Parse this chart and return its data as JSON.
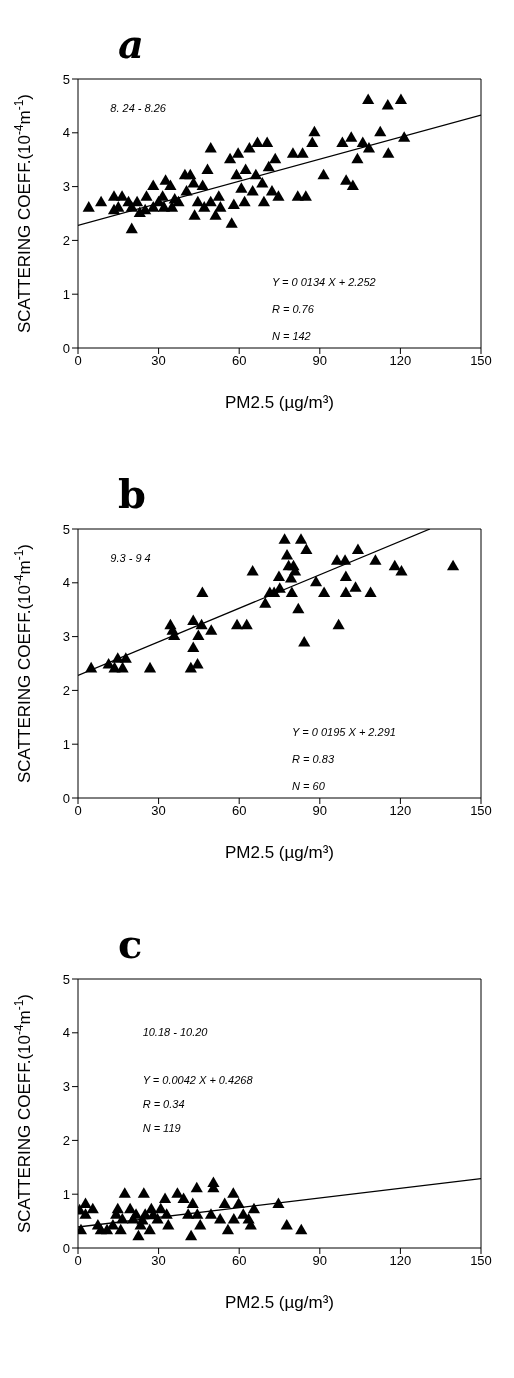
{
  "chart_data": [
    {
      "type": "scatter",
      "title": "a",
      "xlabel": "PM2.5 (µg/m³)",
      "ylabel": "SCATTERING COEFF.(10$^{-4}$m$^{-1}$)",
      "xlim": [
        0,
        150
      ],
      "xticks": [
        0,
        30,
        60,
        90,
        120,
        150
      ],
      "ylim": [
        0,
        5
      ],
      "yticks": [
        0,
        1,
        2,
        3,
        4,
        5
      ],
      "grid": false,
      "legend": false,
      "annotations": [
        "8. 24 - 8.26",
        "Y = 0 0134 X + 2.252",
        "R = 0.76",
        "N = 142"
      ],
      "series": [
        {
          "color": "#000000",
          "marker": "triangle",
          "x": [
            4,
            8.6,
            13.4,
            16.4,
            13.4,
            18.8,
            20,
            22,
            23,
            25.5,
            28,
            30,
            31.5,
            32.6,
            34.4,
            35,
            37.4,
            39.8,
            40.4,
            41.8,
            43,
            43.4,
            44.6,
            46.4,
            48.2,
            49.4,
            49.4,
            51.2,
            52.4,
            53,
            56.6,
            57.2,
            58,
            59,
            59.6,
            60.8,
            62,
            62.4,
            63.8,
            65,
            66.2,
            66.8,
            70.4,
            69.2,
            68.6,
            71,
            73.4,
            74.6,
            72.2,
            80,
            83.6,
            81.8,
            84.8,
            87.2,
            88,
            91.4,
            98.4,
            99.8,
            101.7,
            102.3,
            104,
            106,
            108.3,
            108,
            112.5,
            115.3,
            115.5,
            120.2,
            121.4,
            20,
            25,
            28,
            32,
            36,
            15,
            47
          ],
          "values": [
            2.6,
            2.7,
            2.8,
            2.8,
            2.55,
            2.7,
            2.2,
            2.7,
            2.5,
            2.8,
            3.0,
            2.7,
            2.8,
            3.1,
            3.0,
            2.6,
            2.7,
            3.2,
            2.9,
            3.2,
            3.05,
            2.45,
            2.7,
            3.0,
            3.3,
            3.7,
            2.7,
            2.45,
            2.8,
            2.6,
            3.5,
            2.3,
            2.65,
            3.2,
            3.6,
            2.95,
            2.7,
            3.3,
            3.7,
            2.9,
            3.2,
            3.8,
            3.8,
            2.7,
            3.05,
            3.35,
            3.5,
            2.8,
            2.9,
            3.6,
            3.6,
            2.8,
            2.8,
            3.8,
            4.0,
            3.2,
            3.8,
            3.1,
            3.9,
            3.0,
            3.5,
            3.8,
            3.7,
            4.6,
            4.0,
            4.5,
            3.6,
            4.6,
            3.9,
            2.6,
            2.55,
            2.6,
            2.6,
            2.75,
            2.6,
            2.6
          ]
        },
        {
          "type": "line",
          "color": "#000000",
          "marker": "none",
          "x": [
            0,
            150
          ],
          "values": [
            2.28,
            4.33
          ]
        }
      ]
    },
    {
      "type": "scatter",
      "title": "b",
      "xlabel": "PM2.5 (µg/m³)",
      "ylabel": "SCATTERING COEFF.(10$^{-4}$m$^{-1}$)",
      "xlim": [
        0,
        150
      ],
      "xticks": [
        0,
        30,
        60,
        90,
        120,
        150
      ],
      "ylim": [
        0,
        5
      ],
      "yticks": [
        0,
        1,
        2,
        3,
        4,
        5
      ],
      "grid": false,
      "legend": false,
      "annotations": [
        "9.3 - 9 4",
        "Y = 0 0195 X + 2.291",
        "R = 0.83",
        "N = 60"
      ],
      "series": [
        {
          "color": "#000000",
          "marker": "triangle",
          "x": [
            4.9,
            11.4,
            14.8,
            13.6,
            16.6,
            17.8,
            26.8,
            34.4,
            35.2,
            35.8,
            42.9,
            42.9,
            42,
            44.5,
            44.8,
            46,
            46.3,
            49.6,
            59.2,
            62.8,
            65,
            69.7,
            71.4,
            73,
            74.8,
            75.1,
            76.9,
            77.8,
            78.4,
            79.3,
            79.6,
            80.2,
            80.8,
            82,
            83,
            84.2,
            85,
            88.6,
            91.6,
            96.4,
            97,
            99.4,
            99.7,
            99.7,
            103.3,
            104.2,
            108.9,
            110.7,
            117.9,
            120.4,
            139.6
          ],
          "values": [
            2.4,
            2.47,
            2.58,
            2.4,
            2.4,
            2.58,
            2.4,
            3.2,
            3.1,
            3.0,
            3.28,
            2.78,
            2.4,
            2.47,
            3.0,
            3.2,
            3.8,
            3.1,
            3.2,
            3.2,
            4.2,
            3.6,
            3.8,
            3.8,
            4.1,
            3.88,
            4.79,
            4.5,
            4.3,
            4.07,
            3.8,
            4.3,
            4.2,
            3.5,
            4.79,
            2.88,
            4.6,
            4.0,
            3.8,
            4.4,
            3.2,
            4.4,
            4.1,
            3.8,
            3.9,
            4.6,
            3.8,
            4.4,
            4.3,
            4.2,
            4.3
          ]
        },
        {
          "type": "line",
          "color": "#000000",
          "marker": "none",
          "x": [
            0,
            131
          ],
          "values": [
            2.28,
            5
          ]
        }
      ]
    },
    {
      "type": "scatter",
      "title": "c",
      "xlabel": "PM2.5 (µg/m³)",
      "ylabel": "SCATTERING COEFF.(10$^{-4}$m$^{-1}$)",
      "xlim": [
        0,
        150
      ],
      "xticks": [
        0,
        30,
        60,
        90,
        120,
        150
      ],
      "ylim": [
        0,
        5
      ],
      "yticks": [
        0,
        1,
        2,
        3,
        4,
        5
      ],
      "grid": false,
      "legend": false,
      "annotations": [
        "10.18 - 10.20",
        "Y = 0.0042 X + 0.4268",
        "R = 0.34",
        "N = 119"
      ],
      "series": [
        {
          "color": "#000000",
          "marker": "triangle",
          "x": [
            0.6,
            1.1,
            2.8,
            2.8,
            5.5,
            7.4,
            8.5,
            10.8,
            13,
            14.2,
            14.8,
            15.9,
            16.5,
            17.4,
            19.4,
            20.5,
            21.6,
            22.5,
            23.3,
            24.5,
            25,
            26.7,
            27.3,
            29.6,
            30.8,
            32.4,
            33.6,
            33,
            37,
            39.3,
            41,
            42.1,
            42.7,
            44.2,
            44.4,
            45.5,
            49.5,
            50.4,
            50.4,
            52.9,
            54.6,
            55.8,
            57.8,
            58,
            59.8,
            61.5,
            63.5,
            64.3,
            65.5,
            74.6,
            77.7,
            83.1,
            24,
            28
          ],
          "values": [
            0.69,
            0.32,
            0.81,
            0.61,
            0.71,
            0.41,
            0.32,
            0.32,
            0.41,
            0.61,
            0.71,
            0.32,
            0.52,
            1.0,
            0.71,
            0.52,
            0.61,
            0.21,
            0.41,
            1.0,
            0.61,
            0.32,
            0.71,
            0.52,
            0.71,
            0.9,
            0.41,
            0.61,
            1.0,
            0.9,
            0.61,
            0.21,
            0.81,
            1.1,
            0.61,
            0.41,
            0.61,
            1.2,
            1.1,
            0.52,
            0.81,
            0.32,
            1.0,
            0.52,
            0.81,
            0.61,
            0.52,
            0.41,
            0.71,
            0.81,
            0.41,
            0.32,
            0.5,
            0.6
          ]
        },
        {
          "type": "line",
          "color": "#000000",
          "marker": "none",
          "x": [
            0,
            150
          ],
          "values": [
            0.39,
            1.29
          ]
        }
      ]
    }
  ]
}
